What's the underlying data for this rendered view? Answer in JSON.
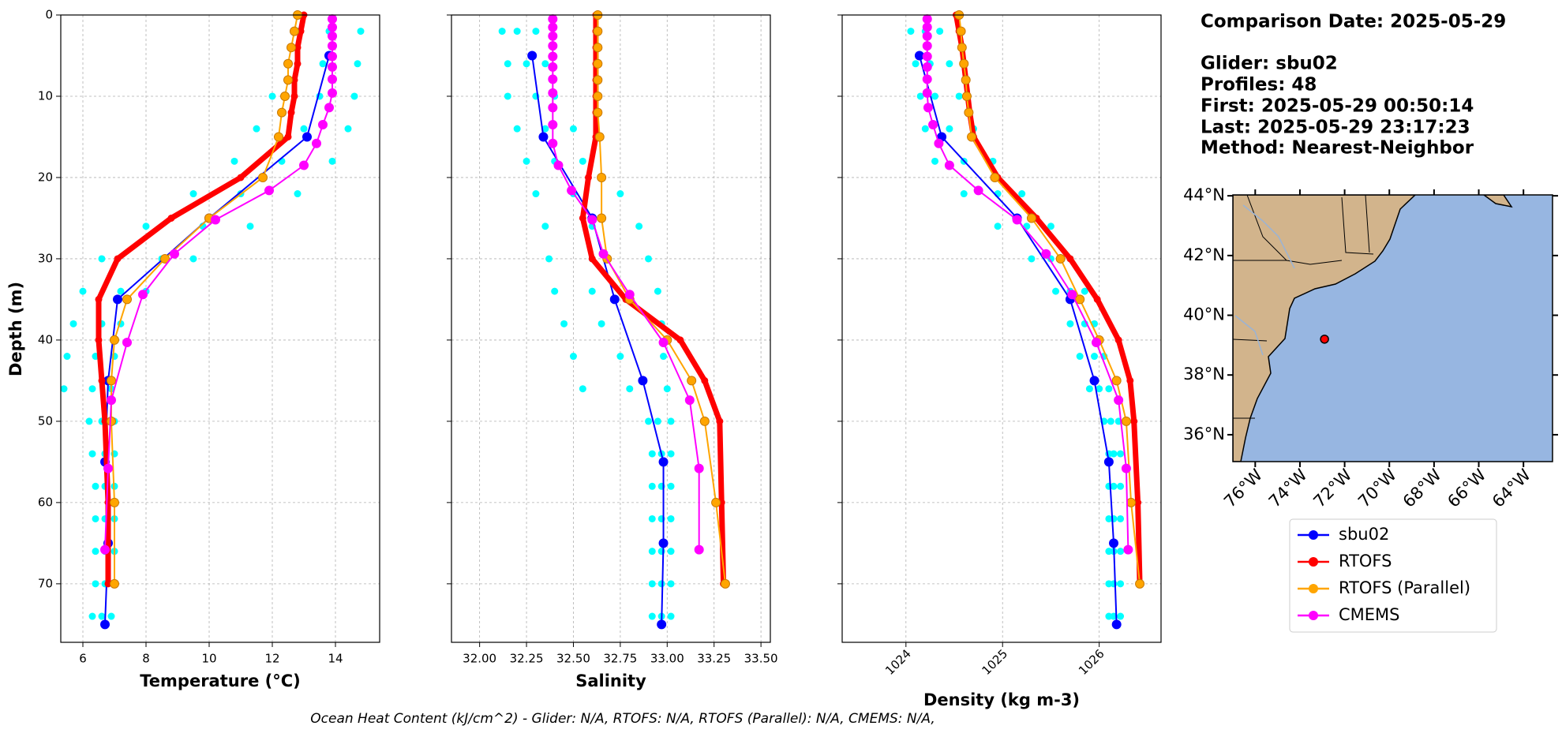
{
  "info": {
    "title": "Comparison Date: 2025-05-29",
    "details": [
      "Glider: sbu02",
      "Profiles: 48",
      "First: 2025-05-29 00:50:14",
      "Last: 2025-05-29 23:17:23",
      "Method: Nearest-Neighbor"
    ]
  },
  "footer": "Ocean Heat Content (kJ/cm^2) - Glider: N/A,  RTOFS: N/A,  RTOFS (Parallel): N/A,  CMEMS: N/A,",
  "depth_axis": {
    "ylabel": "Depth (m)",
    "ylim": [
      77.2,
      0
    ],
    "yticks": [
      0,
      10,
      20,
      30,
      40,
      50,
      60,
      70
    ],
    "grid": true
  },
  "legend": [
    {
      "name": "sbu02",
      "color": "#0000ff"
    },
    {
      "name": "RTOFS",
      "color": "#ff0000"
    },
    {
      "name": "RTOFS (Parallel)",
      "color": "#ffa500"
    },
    {
      "name": "CMEMS",
      "color": "#ff00ff"
    }
  ],
  "chart_data": [
    {
      "type": "profile",
      "xlabel": "Temperature (°C)",
      "xlim": [
        5.3,
        15.4
      ],
      "xticks": [
        6,
        8,
        10,
        12,
        14
      ],
      "grid": true,
      "glider_cloud": {
        "color": "#00ffff",
        "depth": [
          2,
          2,
          2,
          6,
          6,
          6,
          10,
          10,
          10,
          14,
          14,
          14,
          18,
          18,
          18,
          22,
          22,
          22,
          26,
          26,
          26,
          30,
          30,
          30,
          34,
          34,
          34,
          38,
          38,
          38,
          42,
          42,
          42,
          46,
          46,
          46,
          50,
          50,
          50,
          54,
          54,
          54,
          58,
          58,
          58,
          62,
          62,
          62,
          66,
          66,
          66,
          70,
          70,
          70,
          74,
          74,
          74
        ],
        "values": [
          12.8,
          13.8,
          14.8,
          12.5,
          13.6,
          14.7,
          12.0,
          13.5,
          14.6,
          11.5,
          13.0,
          14.4,
          10.8,
          12.3,
          13.9,
          9.5,
          11.0,
          12.8,
          8.0,
          9.8,
          11.3,
          6.6,
          8.5,
          9.5,
          6.0,
          7.2,
          8.0,
          5.7,
          6.6,
          7.2,
          5.5,
          6.4,
          7.0,
          5.4,
          6.3,
          6.9,
          6.2,
          6.6,
          7.0,
          6.3,
          6.7,
          7.0,
          6.4,
          6.7,
          7.0,
          6.4,
          6.7,
          7.0,
          6.4,
          6.7,
          7.0,
          6.4,
          6.7,
          7.0,
          6.3,
          6.6,
          6.9
        ]
      },
      "series": [
        {
          "color": "#0000ff",
          "depth": [
            5,
            15,
            25,
            35,
            45,
            55,
            65,
            75
          ],
          "values": [
            13.8,
            13.1,
            10.0,
            7.1,
            6.8,
            6.7,
            6.8,
            6.7
          ]
        },
        {
          "color": "#ff0000",
          "depth": [
            0,
            2,
            4,
            6,
            8,
            10,
            12,
            15,
            20,
            25,
            30,
            35,
            40,
            45,
            50,
            60,
            70
          ],
          "values": [
            13.0,
            12.9,
            12.8,
            12.8,
            12.7,
            12.7,
            12.6,
            12.5,
            11.0,
            8.8,
            7.1,
            6.5,
            6.5,
            6.6,
            6.7,
            6.8,
            6.8
          ]
        },
        {
          "color": "#ffa500",
          "depth": [
            0,
            2,
            4,
            6,
            8,
            10,
            12,
            15,
            20,
            25,
            30,
            35,
            40,
            45,
            50,
            60,
            70
          ],
          "values": [
            12.8,
            12.7,
            12.6,
            12.5,
            12.5,
            12.4,
            12.3,
            12.2,
            11.7,
            10.0,
            8.6,
            7.4,
            7.0,
            6.9,
            6.9,
            7.0,
            7.0
          ]
        },
        {
          "color": "#ff00ff",
          "depth": [
            0.5,
            1.5,
            2.6,
            3.8,
            5.1,
            6.4,
            7.9,
            9.6,
            11.4,
            13.5,
            15.8,
            18.5,
            21.6,
            25.2,
            29.4,
            34.4,
            40.3,
            47.4,
            55.8,
            65.8
          ],
          "values": [
            13.9,
            13.9,
            13.9,
            13.9,
            13.9,
            13.9,
            13.9,
            13.9,
            13.8,
            13.6,
            13.4,
            13.0,
            11.9,
            10.2,
            8.9,
            7.9,
            7.4,
            6.9,
            6.8,
            6.7
          ]
        }
      ]
    },
    {
      "type": "profile",
      "xlabel": "Salinity",
      "xlim": [
        31.85,
        33.55
      ],
      "xticks": [
        {
          "value": 32,
          "label": "32.00"
        },
        32.25,
        {
          "value": 32.5,
          "label": "32.50"
        },
        32.75,
        {
          "value": 33,
          "label": "33.00"
        },
        33.25,
        {
          "value": 33.5,
          "label": "33.50"
        }
      ],
      "grid": true,
      "glider_cloud": {
        "color": "#00ffff",
        "depth": [
          2,
          2,
          2,
          6,
          6,
          6,
          10,
          10,
          10,
          14,
          14,
          14,
          18,
          18,
          18,
          22,
          22,
          22,
          26,
          26,
          26,
          30,
          30,
          30,
          34,
          34,
          34,
          38,
          38,
          38,
          42,
          42,
          42,
          46,
          46,
          46,
          50,
          50,
          50,
          54,
          54,
          54,
          58,
          58,
          58,
          62,
          62,
          62,
          66,
          66,
          66,
          70,
          70,
          70,
          74,
          74,
          74
        ],
        "values": [
          32.12,
          32.2,
          32.3,
          32.15,
          32.25,
          32.35,
          32.15,
          32.3,
          32.4,
          32.2,
          32.35,
          32.5,
          32.25,
          32.4,
          32.55,
          32.3,
          32.5,
          32.75,
          32.35,
          32.6,
          32.85,
          32.37,
          32.6,
          32.9,
          32.4,
          32.6,
          32.95,
          32.45,
          32.65,
          32.97,
          32.5,
          32.75,
          32.98,
          32.55,
          32.8,
          33.0,
          32.9,
          32.95,
          33.02,
          32.92,
          32.97,
          33.02,
          32.92,
          32.97,
          33.02,
          32.92,
          32.97,
          33.02,
          32.92,
          32.97,
          33.02,
          32.92,
          32.97,
          33.02,
          32.92,
          32.97,
          33.02
        ]
      },
      "series": [
        {
          "color": "#0000ff",
          "depth": [
            5,
            15,
            25,
            35,
            45,
            55,
            65,
            75
          ],
          "values": [
            32.28,
            32.34,
            32.6,
            32.72,
            32.87,
            32.98,
            32.98,
            32.97
          ]
        },
        {
          "color": "#ff0000",
          "depth": [
            0,
            2,
            4,
            6,
            8,
            10,
            12,
            15,
            20,
            25,
            30,
            35,
            40,
            45,
            50,
            60,
            70
          ],
          "values": [
            32.62,
            32.62,
            32.62,
            32.62,
            32.62,
            32.62,
            32.62,
            32.62,
            32.58,
            32.55,
            32.6,
            32.78,
            33.07,
            33.2,
            33.28,
            33.29,
            33.3
          ]
        },
        {
          "color": "#ffa500",
          "depth": [
            0,
            2,
            4,
            6,
            8,
            10,
            12,
            15,
            20,
            25,
            30,
            35,
            40,
            45,
            50,
            60,
            70
          ],
          "values": [
            32.63,
            32.63,
            32.63,
            32.63,
            32.63,
            32.63,
            32.63,
            32.64,
            32.65,
            32.65,
            32.68,
            32.8,
            33.0,
            33.13,
            33.2,
            33.26,
            33.31
          ]
        },
        {
          "color": "#ff00ff",
          "depth": [
            0.5,
            1.5,
            2.6,
            3.8,
            5.1,
            6.4,
            7.9,
            9.6,
            11.4,
            13.5,
            15.8,
            18.5,
            21.6,
            25.2,
            29.4,
            34.4,
            40.3,
            47.4,
            55.8,
            65.8
          ],
          "values": [
            32.39,
            32.39,
            32.39,
            32.39,
            32.39,
            32.39,
            32.39,
            32.39,
            32.39,
            32.39,
            32.39,
            32.42,
            32.49,
            32.6,
            32.66,
            32.8,
            32.98,
            33.12,
            33.17,
            33.17
          ]
        }
      ]
    },
    {
      "type": "profile",
      "xlabel": "Density (kg m-3)",
      "xlim": [
        1023.34,
        1026.64
      ],
      "xticks": [
        1024,
        1025,
        1026
      ],
      "grid": true,
      "glider_cloud": {
        "color": "#00ffff",
        "depth": [
          2,
          2,
          2,
          6,
          6,
          6,
          10,
          10,
          10,
          14,
          14,
          14,
          18,
          18,
          18,
          22,
          22,
          22,
          26,
          26,
          26,
          30,
          30,
          30,
          34,
          34,
          34,
          38,
          38,
          38,
          42,
          42,
          42,
          46,
          46,
          46,
          50,
          50,
          50,
          54,
          54,
          54,
          58,
          58,
          58,
          62,
          62,
          62,
          66,
          66,
          66,
          70,
          70,
          70,
          74,
          74,
          74
        ],
        "values": [
          1024.05,
          1024.2,
          1024.35,
          1024.1,
          1024.25,
          1024.45,
          1024.15,
          1024.3,
          1024.55,
          1024.2,
          1024.45,
          1024.7,
          1024.3,
          1024.6,
          1024.9,
          1024.6,
          1024.95,
          1025.2,
          1024.95,
          1025.25,
          1025.5,
          1025.3,
          1025.5,
          1025.7,
          1025.55,
          1025.7,
          1025.85,
          1025.7,
          1025.85,
          1025.95,
          1025.8,
          1025.95,
          1026.05,
          1025.9,
          1026.0,
          1026.1,
          1026.05,
          1026.12,
          1026.2,
          1026.1,
          1026.15,
          1026.22,
          1026.1,
          1026.15,
          1026.22,
          1026.1,
          1026.15,
          1026.22,
          1026.1,
          1026.15,
          1026.22,
          1026.1,
          1026.15,
          1026.22,
          1026.1,
          1026.15,
          1026.22
        ]
      },
      "series": [
        {
          "color": "#0000ff",
          "depth": [
            5,
            15,
            25,
            35,
            45,
            55,
            65,
            75
          ],
          "values": [
            1024.14,
            1024.37,
            1025.15,
            1025.7,
            1025.95,
            1026.1,
            1026.15,
            1026.18
          ]
        },
        {
          "color": "#ff0000",
          "depth": [
            0,
            2,
            4,
            6,
            8,
            10,
            12,
            15,
            20,
            25,
            30,
            35,
            40,
            45,
            50,
            60,
            70
          ],
          "values": [
            1024.52,
            1024.55,
            1024.58,
            1024.6,
            1024.62,
            1024.64,
            1024.66,
            1024.7,
            1024.95,
            1025.35,
            1025.7,
            1025.98,
            1026.2,
            1026.32,
            1026.36,
            1026.4,
            1026.42
          ]
        },
        {
          "color": "#ffa500",
          "depth": [
            0,
            2,
            4,
            6,
            8,
            10,
            12,
            15,
            20,
            25,
            30,
            35,
            40,
            45,
            50,
            60,
            70
          ],
          "values": [
            1024.55,
            1024.57,
            1024.58,
            1024.6,
            1024.62,
            1024.63,
            1024.65,
            1024.68,
            1024.92,
            1025.3,
            1025.6,
            1025.8,
            1026.0,
            1026.18,
            1026.28,
            1026.33,
            1026.42
          ]
        },
        {
          "color": "#ff00ff",
          "depth": [
            0.5,
            1.5,
            2.6,
            3.8,
            5.1,
            6.4,
            7.9,
            9.6,
            11.4,
            13.5,
            15.8,
            18.5,
            21.6,
            25.2,
            29.4,
            34.4,
            40.3,
            47.4,
            55.8,
            65.8
          ],
          "values": [
            1024.22,
            1024.22,
            1024.22,
            1024.22,
            1024.22,
            1024.22,
            1024.22,
            1024.22,
            1024.23,
            1024.28,
            1024.34,
            1024.45,
            1024.75,
            1025.15,
            1025.45,
            1025.72,
            1025.97,
            1026.2,
            1026.28,
            1026.3
          ]
        }
      ]
    },
    {
      "type": "map",
      "xlim": [
        -77.0,
        -62.7
      ],
      "ylim": [
        35.1,
        44.03
      ],
      "xticks": [
        {
          "value": -76,
          "label": "76°W"
        },
        {
          "value": -74,
          "label": "74°W"
        },
        {
          "value": -72,
          "label": "72°W"
        },
        {
          "value": -70,
          "label": "70°W"
        },
        {
          "value": -68,
          "label": "68°W"
        },
        {
          "value": -66,
          "label": "66°W"
        },
        {
          "value": -64,
          "label": "64°W"
        }
      ],
      "yticks": [
        {
          "value": 36,
          "label": "36°N"
        },
        {
          "value": 38,
          "label": "38°N"
        },
        {
          "value": 40,
          "label": "40°N"
        },
        {
          "value": 42,
          "label": "42°N"
        },
        {
          "value": 44,
          "label": "44°N"
        }
      ],
      "position": {
        "lon": -72.9,
        "lat": 39.2,
        "color": "#ff0000"
      }
    }
  ]
}
